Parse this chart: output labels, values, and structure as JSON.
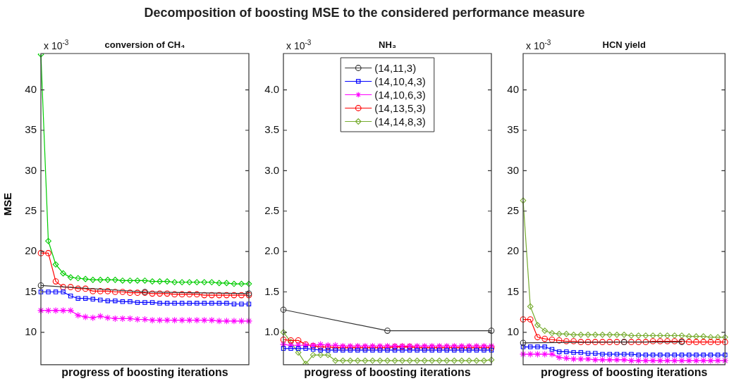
{
  "chart_data": [
    {
      "type": "line",
      "title": "Decomposition of boosting MSE to the considered performance measure",
      "subtitle": "conversion of CH₄",
      "xlabel": "progress of boosting iterations",
      "ylabel": "MSE",
      "annotations": [
        "x 10$^{-3}$"
      ],
      "legend": false,
      "tick_labels": "y",
      "grid": false,
      "categories": [
        null,
        null,
        null,
        null,
        null,
        null,
        null,
        null,
        null,
        null,
        null,
        null,
        null,
        null,
        null,
        null,
        null,
        null,
        null,
        null,
        null,
        null,
        null,
        null,
        null,
        null,
        null,
        null,
        null
      ],
      "ylim": [
        6,
        44.5
      ],
      "yticks": [
        10,
        15,
        20,
        25,
        30,
        35,
        40
      ],
      "series": [
        {
          "color": "#333333",
          "marker": "circle",
          "values": [
            15.8,
            null,
            null,
            null,
            null,
            null,
            null,
            null,
            null,
            null,
            null,
            null,
            null,
            null,
            15.0,
            null,
            null,
            null,
            null,
            null,
            null,
            null,
            null,
            null,
            null,
            null,
            null,
            null,
            14.8
          ]
        },
        {
          "color": "#0000ff",
          "marker": "square",
          "values": [
            15.0,
            15.0,
            15.0,
            15.0,
            14.5,
            14.2,
            14.2,
            14.1,
            14.0,
            13.9,
            13.9,
            13.8,
            13.8,
            13.7,
            13.7,
            13.7,
            13.6,
            13.6,
            13.6,
            13.6,
            13.6,
            13.6,
            13.6,
            13.6,
            13.6,
            13.6,
            13.5,
            13.5,
            13.5
          ]
        },
        {
          "color": "#ff00ff",
          "marker": "cross",
          "values": [
            12.7,
            12.7,
            12.7,
            12.7,
            12.7,
            12.1,
            11.9,
            11.8,
            12.0,
            11.8,
            11.7,
            11.7,
            11.7,
            11.6,
            11.6,
            11.5,
            11.5,
            11.5,
            11.5,
            11.5,
            11.5,
            11.5,
            11.5,
            11.5,
            11.4,
            11.4,
            11.4,
            11.4,
            11.4
          ]
        },
        {
          "color": "#ff0000",
          "marker": "circle",
          "values": [
            19.8,
            19.8,
            16.3,
            15.6,
            15.6,
            15.4,
            15.4,
            15.1,
            15.1,
            15.1,
            15.0,
            15.0,
            14.9,
            14.9,
            14.9,
            14.8,
            14.8,
            14.8,
            14.7,
            14.7,
            14.7,
            14.7,
            14.6,
            14.6,
            14.6,
            14.6,
            14.6,
            14.6,
            14.6
          ]
        },
        {
          "color": "#00cc00",
          "marker": "diamond",
          "values": [
            44.4,
            21.3,
            18.4,
            17.3,
            16.8,
            16.7,
            16.6,
            16.5,
            16.5,
            16.5,
            16.5,
            16.4,
            16.4,
            16.4,
            16.4,
            16.3,
            16.3,
            16.3,
            16.2,
            16.2,
            16.2,
            16.2,
            16.2,
            16.2,
            16.1,
            16.1,
            16.0,
            16.0,
            16.0
          ]
        }
      ]
    },
    {
      "type": "line",
      "subtitle": "NH₃",
      "xlabel": "progress of boosting iterations",
      "annotations": [
        "x 10$^{-3}$"
      ],
      "legend": "top",
      "tick_labels": "y",
      "grid": false,
      "categories": [
        null,
        null,
        null,
        null,
        null,
        null,
        null,
        null,
        null,
        null,
        null,
        null,
        null,
        null,
        null,
        null,
        null,
        null,
        null,
        null,
        null,
        null,
        null,
        null,
        null,
        null,
        null,
        null,
        null
      ],
      "ylim": [
        0.6,
        4.45
      ],
      "yticks": [
        {
          "value": 1,
          "label": "1.0"
        },
        1.5,
        {
          "value": 2,
          "label": "2.0"
        },
        2.5,
        {
          "value": 3,
          "label": "3.0"
        },
        3.5,
        {
          "value": 4,
          "label": "4.0"
        }
      ],
      "series": [
        {
          "name": "(14,11,3)",
          "color": "#333333",
          "marker": "circle",
          "values": [
            1.28,
            null,
            null,
            null,
            null,
            null,
            null,
            null,
            null,
            null,
            null,
            null,
            null,
            null,
            1.02,
            null,
            null,
            null,
            null,
            null,
            null,
            null,
            null,
            null,
            null,
            null,
            null,
            null,
            1.02
          ]
        },
        {
          "name": "(14,10,4,3)",
          "color": "#0000ff",
          "marker": "square",
          "values": [
            0.8,
            0.8,
            0.8,
            0.8,
            0.79,
            0.78,
            0.78,
            0.78,
            0.78,
            0.78,
            0.78,
            0.78,
            0.78,
            0.78,
            0.78,
            0.78,
            0.78,
            0.78,
            0.78,
            0.78,
            0.78,
            0.78,
            0.78,
            0.78,
            0.78,
            0.78,
            0.78,
            0.78,
            0.78
          ]
        },
        {
          "name": "(14,10,6,3)",
          "color": "#ff00ff",
          "marker": "cross",
          "values": [
            0.85,
            0.84,
            0.84,
            0.84,
            0.84,
            0.85,
            0.84,
            0.84,
            0.83,
            0.83,
            0.83,
            0.83,
            0.83,
            0.83,
            0.83,
            0.83,
            0.83,
            0.83,
            0.83,
            0.83,
            0.83,
            0.83,
            0.83,
            0.83,
            0.83,
            0.83,
            0.83,
            0.83,
            0.83
          ]
        },
        {
          "name": "(14,13,5,3)",
          "color": "#ff0000",
          "marker": "circle",
          "values": [
            0.91,
            0.9,
            0.9,
            0.85,
            0.83,
            0.82,
            0.82,
            0.81,
            0.81,
            0.81,
            0.81,
            0.81,
            0.81,
            0.81,
            0.81,
            0.82,
            0.82,
            0.82,
            0.81,
            0.81,
            0.81,
            0.81,
            0.81,
            0.81,
            0.81,
            0.81,
            0.81,
            0.81,
            0.81
          ]
        },
        {
          "name": "(14,14,8,3)",
          "color": "#77ac30",
          "marker": "diamond",
          "values": [
            1.0,
            0.88,
            0.75,
            0.61,
            0.72,
            0.72,
            0.72,
            0.65,
            0.65,
            0.65,
            0.65,
            0.65,
            0.65,
            0.65,
            0.65,
            0.65,
            0.65,
            0.65,
            0.65,
            0.65,
            0.65,
            0.65,
            0.65,
            0.65,
            0.65,
            0.65,
            0.65,
            0.65,
            0.66
          ]
        }
      ]
    },
    {
      "type": "line",
      "subtitle": "HCN yield",
      "xlabel": "progress of boosting iterations",
      "annotations": [
        "x 10$^{-3}$"
      ],
      "legend": false,
      "tick_labels": "y",
      "grid": false,
      "categories": [
        null,
        null,
        null,
        null,
        null,
        null,
        null,
        null,
        null,
        null,
        null,
        null,
        null,
        null,
        null,
        null,
        null,
        null,
        null,
        null,
        null,
        null,
        null,
        null,
        null,
        null,
        null,
        null,
        null
      ],
      "ylim": [
        6,
        44.5
      ],
      "yticks": [
        10,
        15,
        20,
        25,
        30,
        35,
        40
      ],
      "series": [
        {
          "color": "#333333",
          "marker": "circle",
          "values": [
            8.7,
            null,
            null,
            null,
            null,
            null,
            null,
            null,
            null,
            null,
            null,
            null,
            null,
            null,
            8.8,
            null,
            null,
            null,
            null,
            null,
            null,
            null,
            8.8,
            null,
            null,
            null,
            null,
            null,
            null
          ]
        },
        {
          "color": "#0000ff",
          "marker": "square",
          "values": [
            8.2,
            8.2,
            8.2,
            8.2,
            7.9,
            7.6,
            7.6,
            7.5,
            7.5,
            7.4,
            7.4,
            7.3,
            7.3,
            7.3,
            7.3,
            7.3,
            7.2,
            7.2,
            7.2,
            7.2,
            7.2,
            7.2,
            7.2,
            7.2,
            7.2,
            7.2,
            7.2,
            7.2,
            7.2
          ]
        },
        {
          "color": "#ff00ff",
          "marker": "cross",
          "values": [
            7.3,
            7.3,
            7.3,
            7.3,
            7.3,
            6.9,
            6.8,
            6.7,
            6.7,
            6.7,
            6.6,
            6.6,
            6.6,
            6.6,
            6.6,
            6.5,
            6.5,
            6.5,
            6.5,
            6.5,
            6.5,
            6.5,
            6.5,
            6.5,
            6.5,
            6.5,
            6.5,
            6.5,
            6.5
          ]
        },
        {
          "color": "#ff0000",
          "marker": "circle",
          "values": [
            11.6,
            11.6,
            9.4,
            9.2,
            9.1,
            9.0,
            8.9,
            8.9,
            8.8,
            8.8,
            8.8,
            8.8,
            8.8,
            8.8,
            8.8,
            8.8,
            8.8,
            8.8,
            8.9,
            8.9,
            8.9,
            8.9,
            8.9,
            8.8,
            8.8,
            8.8,
            8.8,
            8.8,
            8.8
          ]
        },
        {
          "color": "#77ac30",
          "marker": "diamond",
          "values": [
            26.3,
            13.2,
            10.9,
            10.2,
            9.9,
            9.8,
            9.8,
            9.7,
            9.7,
            9.7,
            9.7,
            9.7,
            9.7,
            9.7,
            9.7,
            9.6,
            9.6,
            9.6,
            9.6,
            9.6,
            9.6,
            9.6,
            9.6,
            9.5,
            9.5,
            9.5,
            9.4,
            9.4,
            9.4
          ]
        }
      ]
    }
  ]
}
